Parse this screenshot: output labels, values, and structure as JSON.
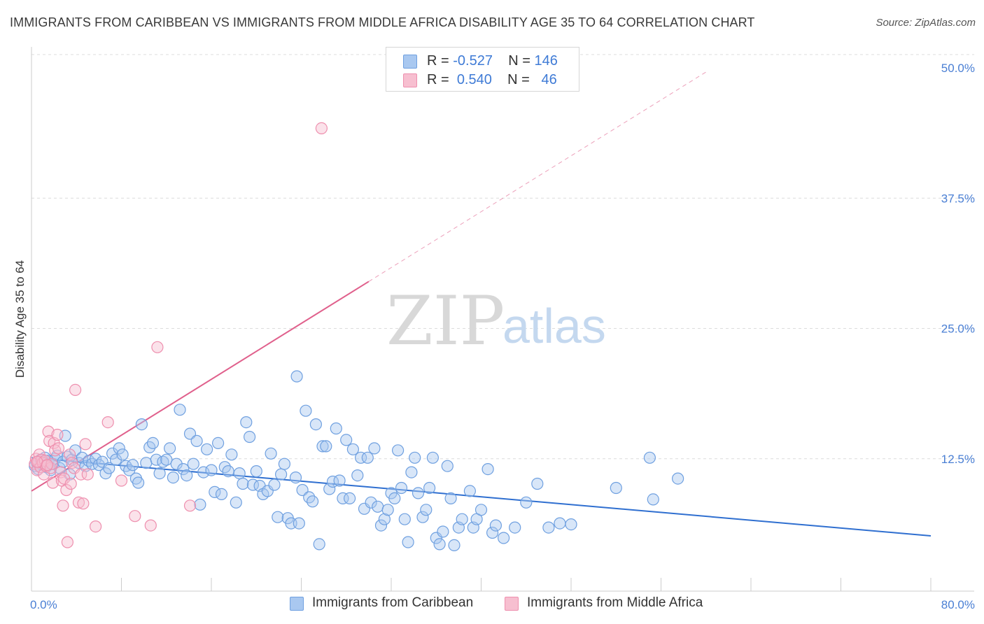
{
  "title": "IMMIGRANTS FROM CARIBBEAN VS IMMIGRANTS FROM MIDDLE AFRICA DISABILITY AGE 35 TO 64 CORRELATION CHART",
  "source": "Source: ZipAtlas.com",
  "watermark": {
    "zip": "ZIP",
    "atlas": "atlas"
  },
  "legend": {
    "rows": [
      {
        "r_label": "R =",
        "r_value": "-0.527",
        "n_label": "N =",
        "n_value": "146",
        "color": "#a9c8f0",
        "border": "#6fa0e0"
      },
      {
        "r_label": "R =",
        "r_value": "0.540",
        "n_label": "N =",
        "n_value": "46",
        "color": "#f7bfd0",
        "border": "#ee8fae"
      }
    ]
  },
  "bottom_legend": [
    {
      "label": "Immigrants from Caribbean",
      "color": "#a9c8f0",
      "border": "#6fa0e0"
    },
    {
      "label": "Immigrants from Middle Africa",
      "color": "#f7bfd0",
      "border": "#ee8fae"
    }
  ],
  "chart_data": {
    "type": "scatter",
    "title": "IMMIGRANTS FROM CARIBBEAN VS IMMIGRANTS FROM MIDDLE AFRICA DISABILITY AGE 35 TO 64 CORRELATION CHART",
    "xlabel": "",
    "ylabel": "Disability Age 35 to 64",
    "xlim": [
      0,
      80
    ],
    "ylim": [
      0,
      50
    ],
    "x_tick_labels": [
      "0.0%",
      "80.0%"
    ],
    "y_ticks": [
      12.5,
      25.0,
      37.5,
      50.0
    ],
    "y_tick_labels": [
      "12.5%",
      "25.0%",
      "37.5%",
      "50.0%"
    ],
    "grid": true,
    "legend_position": "top-center",
    "colors": {
      "blue_fill": "#a9c8f0",
      "blue_stroke": "#6fa0e0",
      "blue_line": "#2f6fd0",
      "pink_fill": "#f7bfd0",
      "pink_stroke": "#ee8fae",
      "pink_line": "#e0608c"
    },
    "series": [
      {
        "name": "Immigrants from Caribbean",
        "points": [
          [
            0.3,
            11.8
          ],
          [
            0.5,
            12.1
          ],
          [
            0.6,
            11.5
          ],
          [
            0.8,
            12.4
          ],
          [
            1.0,
            11.9
          ],
          [
            1.1,
            12.2
          ],
          [
            1.2,
            12.6
          ],
          [
            1.3,
            11.7
          ],
          [
            1.5,
            12.3
          ],
          [
            1.7,
            11.4
          ],
          [
            1.9,
            12.0
          ],
          [
            2.1,
            12.5
          ],
          [
            2.3,
            12.8
          ],
          [
            2.5,
            11.6
          ],
          [
            2.8,
            12.2
          ],
          [
            3.0,
            14.7
          ],
          [
            3.2,
            12.7
          ],
          [
            3.4,
            11.0
          ],
          [
            3.6,
            12.4
          ],
          [
            3.9,
            13.3
          ],
          [
            4.2,
            12.1
          ],
          [
            4.5,
            12.6
          ],
          [
            4.8,
            11.8
          ],
          [
            5.1,
            12.3
          ],
          [
            5.4,
            12.0
          ],
          [
            5.7,
            12.5
          ],
          [
            6.0,
            11.9
          ],
          [
            6.3,
            12.2
          ],
          [
            6.6,
            11.1
          ],
          [
            6.9,
            11.6
          ],
          [
            7.2,
            13.0
          ],
          [
            7.5,
            12.4
          ],
          [
            7.8,
            13.5
          ],
          [
            8.1,
            12.9
          ],
          [
            8.4,
            11.8
          ],
          [
            8.7,
            11.4
          ],
          [
            9.0,
            11.9
          ],
          [
            9.3,
            10.6
          ],
          [
            9.5,
            10.2
          ],
          [
            9.8,
            15.8
          ],
          [
            10.2,
            12.1
          ],
          [
            10.5,
            13.6
          ],
          [
            10.8,
            14.0
          ],
          [
            11.1,
            12.4
          ],
          [
            11.4,
            11.1
          ],
          [
            11.7,
            12.2
          ],
          [
            12.0,
            12.4
          ],
          [
            12.3,
            13.5
          ],
          [
            12.6,
            10.7
          ],
          [
            12.9,
            12.0
          ],
          [
            13.2,
            17.2
          ],
          [
            13.5,
            11.5
          ],
          [
            13.8,
            10.9
          ],
          [
            14.1,
            14.9
          ],
          [
            14.4,
            12.0
          ],
          [
            14.7,
            14.2
          ],
          [
            15.0,
            8.1
          ],
          [
            15.3,
            11.2
          ],
          [
            15.6,
            13.4
          ],
          [
            16.0,
            11.4
          ],
          [
            16.3,
            9.3
          ],
          [
            16.6,
            14.0
          ],
          [
            16.9,
            9.1
          ],
          [
            17.2,
            11.7
          ],
          [
            17.5,
            11.3
          ],
          [
            17.8,
            12.9
          ],
          [
            18.2,
            8.3
          ],
          [
            18.5,
            11.1
          ],
          [
            18.8,
            10.1
          ],
          [
            19.1,
            16.0
          ],
          [
            19.4,
            14.6
          ],
          [
            19.7,
            10.0
          ],
          [
            20.0,
            11.3
          ],
          [
            20.3,
            9.9
          ],
          [
            20.6,
            9.1
          ],
          [
            21.0,
            9.4
          ],
          [
            21.3,
            13.0
          ],
          [
            21.6,
            10.0
          ],
          [
            21.9,
            6.9
          ],
          [
            22.2,
            11.0
          ],
          [
            22.5,
            12.0
          ],
          [
            22.8,
            6.8
          ],
          [
            23.1,
            6.3
          ],
          [
            23.5,
            10.7
          ],
          [
            23.8,
            6.3
          ],
          [
            24.1,
            9.5
          ],
          [
            24.4,
            17.1
          ],
          [
            24.7,
            8.8
          ],
          [
            25.0,
            8.4
          ],
          [
            25.3,
            15.8
          ],
          [
            25.6,
            4.3
          ],
          [
            25.9,
            13.7
          ],
          [
            26.2,
            13.7
          ],
          [
            26.5,
            9.6
          ],
          [
            26.8,
            10.3
          ],
          [
            27.1,
            15.4
          ],
          [
            27.4,
            10.4
          ],
          [
            27.7,
            8.7
          ],
          [
            28.0,
            14.3
          ],
          [
            28.3,
            8.7
          ],
          [
            28.6,
            13.4
          ],
          [
            29.0,
            10.9
          ],
          [
            29.3,
            12.6
          ],
          [
            29.6,
            7.7
          ],
          [
            29.9,
            12.6
          ],
          [
            30.2,
            8.3
          ],
          [
            30.5,
            13.5
          ],
          [
            30.8,
            7.9
          ],
          [
            31.1,
            6.1
          ],
          [
            31.4,
            6.7
          ],
          [
            31.7,
            7.6
          ],
          [
            32.0,
            9.2
          ],
          [
            32.3,
            8.7
          ],
          [
            32.6,
            13.3
          ],
          [
            32.9,
            9.7
          ],
          [
            33.2,
            6.7
          ],
          [
            33.5,
            4.5
          ],
          [
            33.8,
            11.2
          ],
          [
            34.1,
            12.6
          ],
          [
            34.4,
            9.2
          ],
          [
            34.8,
            6.9
          ],
          [
            35.1,
            7.6
          ],
          [
            35.4,
            9.7
          ],
          [
            35.7,
            12.6
          ],
          [
            36.0,
            4.9
          ],
          [
            36.3,
            4.3
          ],
          [
            36.6,
            5.5
          ],
          [
            37.0,
            11.8
          ],
          [
            37.3,
            8.7
          ],
          [
            37.6,
            4.2
          ],
          [
            38.0,
            5.9
          ],
          [
            38.3,
            6.7
          ],
          [
            39.0,
            9.4
          ],
          [
            39.3,
            5.9
          ],
          [
            39.6,
            6.7
          ],
          [
            40.0,
            7.6
          ],
          [
            40.6,
            11.5
          ],
          [
            41.0,
            5.4
          ],
          [
            41.3,
            6.1
          ],
          [
            42.0,
            4.9
          ],
          [
            43.0,
            5.9
          ],
          [
            44.0,
            8.3
          ],
          [
            45.0,
            10.1
          ],
          [
            46.0,
            5.9
          ],
          [
            47.0,
            6.3
          ],
          [
            48.0,
            6.2
          ],
          [
            52.0,
            9.7
          ],
          [
            55.0,
            12.6
          ],
          [
            55.3,
            8.6
          ],
          [
            57.5,
            10.6
          ],
          [
            23.6,
            20.4
          ]
        ],
        "trend": {
          "x": [
            0,
            80
          ],
          "y": [
            12.6,
            5.1
          ]
        }
      },
      {
        "name": "Immigrants from Middle Africa",
        "points": [
          [
            0.3,
            12.0
          ],
          [
            0.4,
            12.5
          ],
          [
            0.5,
            11.4
          ],
          [
            0.6,
            12.2
          ],
          [
            0.7,
            12.9
          ],
          [
            0.8,
            11.7
          ],
          [
            0.9,
            12.4
          ],
          [
            1.0,
            12.1
          ],
          [
            1.1,
            11.0
          ],
          [
            1.2,
            12.3
          ],
          [
            1.3,
            11.8
          ],
          [
            1.5,
            15.1
          ],
          [
            1.6,
            14.2
          ],
          [
            1.7,
            11.6
          ],
          [
            1.8,
            12.0
          ],
          [
            1.9,
            10.2
          ],
          [
            2.0,
            14.0
          ],
          [
            2.1,
            13.3
          ],
          [
            2.3,
            14.8
          ],
          [
            2.4,
            13.5
          ],
          [
            2.6,
            11.2
          ],
          [
            2.7,
            10.4
          ],
          [
            2.8,
            8.0
          ],
          [
            2.9,
            10.6
          ],
          [
            3.1,
            9.5
          ],
          [
            3.2,
            4.5
          ],
          [
            3.4,
            12.9
          ],
          [
            3.5,
            10.1
          ],
          [
            3.6,
            12.1
          ],
          [
            3.8,
            11.6
          ],
          [
            3.9,
            19.1
          ],
          [
            4.2,
            8.3
          ],
          [
            4.4,
            11.0
          ],
          [
            4.6,
            8.2
          ],
          [
            4.8,
            13.9
          ],
          [
            5.0,
            11.0
          ],
          [
            5.7,
            6.0
          ],
          [
            6.8,
            16.0
          ],
          [
            8.0,
            10.4
          ],
          [
            9.2,
            7.0
          ],
          [
            10.6,
            6.1
          ],
          [
            11.2,
            23.2
          ],
          [
            14.1,
            8.0
          ],
          [
            25.8,
            44.2
          ],
          [
            0.5,
            12.2
          ],
          [
            1.4,
            11.9
          ]
        ],
        "trend": {
          "x": [
            0,
            30
          ],
          "y": [
            9.4,
            29.5
          ]
        },
        "trend_extension": {
          "x": [
            30,
            60
          ],
          "y": [
            29.5,
            49.6
          ]
        }
      }
    ]
  }
}
